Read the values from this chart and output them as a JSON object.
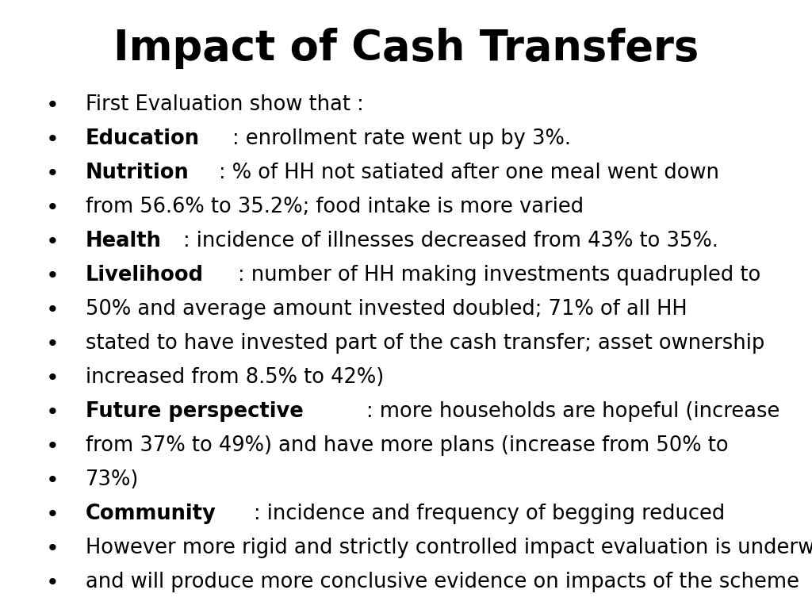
{
  "title": "Impact of Cash Transfers",
  "title_fontsize": 38,
  "title_fontweight": "bold",
  "background_color": "#ffffff",
  "text_color": "#000000",
  "bullet_char": "•",
  "text_fontsize": 18.5,
  "lines": [
    {
      "bold_part": "",
      "normal_part": "First Evaluation show that :"
    },
    {
      "bold_part": "Education",
      "normal_part": ": enrollment rate went up by 3%."
    },
    {
      "bold_part": "Nutrition",
      "normal_part": ": % of HH not satiated after one meal went down"
    },
    {
      "bold_part": "",
      "normal_part": "from 56.6% to 35.2%; food intake is more varied"
    },
    {
      "bold_part": "Health",
      "normal_part": ": incidence of illnesses decreased from 43% to 35%."
    },
    {
      "bold_part": "Livelihood",
      "normal_part": ": number of HH making investments quadrupled to"
    },
    {
      "bold_part": "",
      "normal_part": "50% and average amount invested doubled; 71% of all HH"
    },
    {
      "bold_part": "",
      "normal_part": "stated to have invested part of the cash transfer; asset ownership"
    },
    {
      "bold_part": "",
      "normal_part": "increased from 8.5% to 42%)"
    },
    {
      "bold_part": "Future perspective",
      "normal_part": ": more households are hopeful (increase"
    },
    {
      "bold_part": "",
      "normal_part": "from 37% to 49%) and have more plans (increase from 50% to"
    },
    {
      "bold_part": "",
      "normal_part": "73%)"
    },
    {
      "bold_part": "Community",
      "normal_part": ": incidence and frequency of begging reduced"
    },
    {
      "bold_part": "",
      "normal_part": "However more rigid and strictly controlled impact evaluation is underway"
    },
    {
      "bold_part": "",
      "normal_part": "and will produce more conclusive evidence on impacts of the scheme"
    }
  ]
}
